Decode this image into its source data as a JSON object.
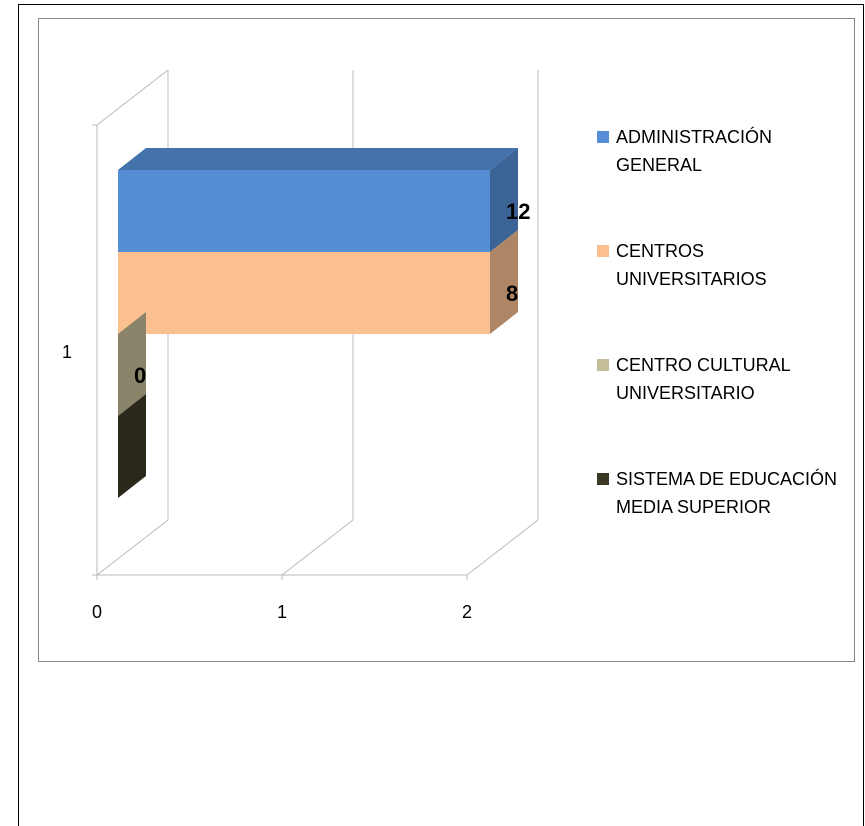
{
  "chart_data": {
    "type": "bar3d_horizontal",
    "categories": [
      "1"
    ],
    "series": [
      {
        "name": "ADMINISTRACIÓN GENERAL",
        "color": "#558ed5",
        "values": [
          12
        ],
        "show_label": true
      },
      {
        "name": "CENTROS UNIVERSITARIOS",
        "color": "#fac090",
        "values": [
          8
        ],
        "show_label": true
      },
      {
        "name": "CENTRO CULTURAL UNIVERSITARIO",
        "color": "#c4bd97",
        "values": [
          0
        ],
        "show_label": true
      },
      {
        "name": "SISTEMA DE EDUCACIÓN MEDIA SUPERIOR",
        "color": "#3b3925",
        "values": [
          0
        ],
        "show_label": false
      }
    ],
    "xlim": [
      0,
      2
    ],
    "xticks": [
      0,
      1,
      2
    ],
    "grid": true,
    "legend": "right"
  }
}
